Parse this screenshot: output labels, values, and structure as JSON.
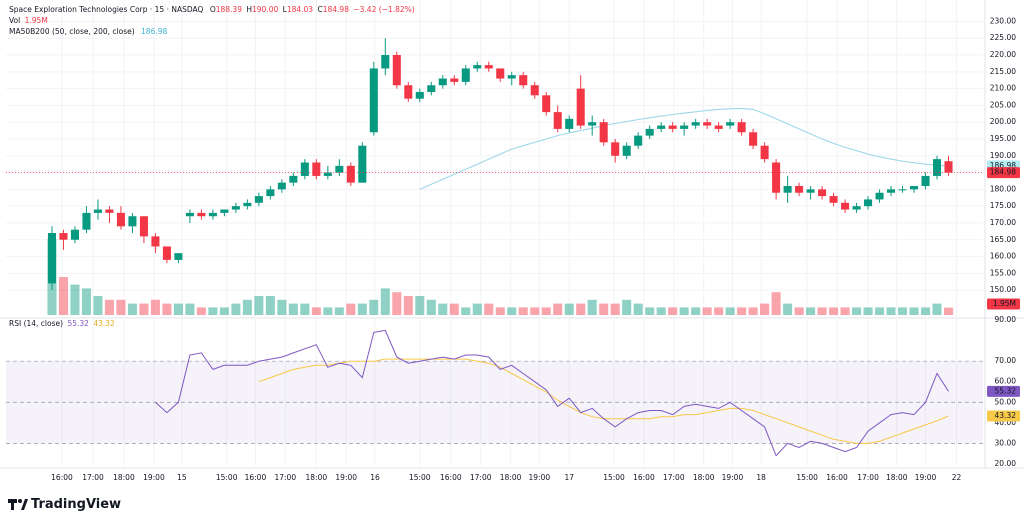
{
  "chart_data": {
    "type": "candlestick",
    "title": "Space Exploration Technologies Corp · 15 · NASDAQ",
    "legend": {
      "O": "188.39",
      "H": "190.00",
      "L": "184.03",
      "C": "184.98",
      "change": "−3.42 (−1.82%)"
    },
    "volume_title": "Vol",
    "volume_label": "1.95M",
    "ma_title": "MA50B200 (50, close, 200, close)",
    "colors": {
      "up": "#089981",
      "down": "#f23645"
    },
    "open": [
      152,
      167,
      165,
      168,
      173,
      174,
      173,
      169,
      172,
      166,
      163,
      159,
      172,
      173,
      172,
      173,
      174,
      175,
      176,
      178,
      180,
      182,
      184,
      188,
      184,
      185,
      187,
      182,
      197,
      216,
      220,
      211,
      207,
      209,
      211,
      213,
      212,
      216,
      217,
      216,
      213,
      214,
      211,
      208,
      203,
      198,
      210,
      199,
      200,
      194,
      190,
      193,
      196,
      198,
      199,
      198,
      199,
      200,
      199,
      199,
      200,
      197,
      193,
      188,
      179,
      181,
      179,
      180,
      178,
      176,
      174,
      175,
      177,
      179,
      180,
      180,
      181,
      184,
      188.39
    ],
    "high": [
      169,
      168,
      169,
      175,
      177,
      175,
      175,
      173,
      172,
      167,
      163,
      161,
      174,
      174,
      174,
      174,
      176,
      177,
      179,
      181,
      183,
      185,
      189,
      189,
      187,
      189,
      188,
      194,
      218,
      225,
      221,
      212,
      210,
      212,
      214,
      214,
      217,
      218,
      218,
      216,
      215,
      215,
      212,
      209,
      205,
      202,
      214,
      202,
      201,
      195,
      194,
      197,
      199,
      200,
      200,
      200,
      201,
      201,
      200,
      201,
      201,
      198,
      194,
      189,
      184,
      182,
      181,
      181,
      179,
      177,
      176,
      178,
      180,
      181,
      181,
      181,
      185,
      190,
      190.0
    ],
    "low": [
      150,
      162,
      164,
      167,
      171,
      170,
      168,
      167,
      164,
      161,
      158,
      158,
      170,
      171,
      171,
      172,
      173,
      174,
      175,
      177,
      179,
      181,
      183,
      183,
      183,
      184,
      181,
      182,
      196,
      214,
      210,
      206,
      206,
      208,
      210,
      211,
      211,
      215,
      215,
      212,
      211,
      210,
      207,
      202,
      197,
      197,
      198,
      196,
      193,
      188,
      189,
      192,
      195,
      197,
      197,
      196,
      198,
      198,
      197,
      198,
      196,
      192,
      188,
      177,
      176,
      178,
      177,
      177,
      175,
      173,
      173,
      174,
      176,
      178,
      179,
      179,
      180,
      183,
      184.03
    ],
    "close": [
      167,
      165,
      168,
      173,
      174,
      173,
      169,
      172,
      166,
      163,
      159,
      161,
      173,
      172,
      173,
      174,
      175,
      176,
      178,
      180,
      182,
      184,
      188,
      184,
      185,
      187,
      182,
      193,
      216,
      220,
      211,
      207,
      209,
      211,
      213,
      212,
      216,
      217,
      216,
      213,
      214,
      211,
      208,
      203,
      198,
      201,
      199,
      200,
      194,
      190,
      193,
      196,
      198,
      199,
      198,
      199,
      200,
      199,
      198,
      200,
      197,
      193,
      189,
      179,
      181,
      179,
      180,
      178,
      176,
      174,
      175,
      177,
      179,
      180,
      180,
      181,
      184,
      189,
      184.98
    ],
    "volume": [
      20,
      10,
      8,
      7,
      5,
      4,
      4,
      3,
      3,
      4,
      3,
      3,
      3,
      2,
      2,
      2,
      3,
      4,
      5,
      5,
      4,
      3,
      3,
      2,
      2,
      2,
      3,
      3,
      4,
      7,
      6,
      5,
      5,
      4,
      3,
      3,
      2,
      3,
      3,
      2,
      2,
      2,
      2,
      2,
      3,
      3,
      3,
      4,
      3,
      3,
      4,
      3,
      2,
      2,
      2,
      2,
      2,
      2,
      2,
      2,
      2,
      2,
      3,
      6,
      3,
      2,
      2,
      2,
      2,
      2,
      2,
      2,
      2,
      2,
      2,
      2,
      2,
      3,
      1.95
    ],
    "ma": {
      "color": "#9ed8e8",
      "values": [
        null,
        null,
        null,
        null,
        null,
        null,
        null,
        null,
        null,
        null,
        null,
        null,
        null,
        null,
        null,
        null,
        null,
        null,
        null,
        null,
        null,
        null,
        null,
        null,
        null,
        null,
        null,
        null,
        null,
        null,
        null,
        null,
        180,
        181.5,
        183,
        184.5,
        186,
        187.5,
        189,
        190.5,
        192,
        193,
        194,
        195,
        196,
        196.8,
        197.5,
        198.2,
        199,
        199.6,
        200.2,
        200.8,
        201.3,
        201.8,
        202.3,
        202.7,
        203.1,
        203.5,
        203.8,
        204,
        204.1,
        203.8,
        202.5,
        201,
        199.5,
        198,
        196.5,
        195,
        193.7,
        192.5,
        191.5,
        190.5,
        189.7,
        189,
        188.4,
        187.9,
        187.5,
        187.2,
        186.98
      ]
    },
    "ylim": [
      142,
      234
    ],
    "yticks": [
      {
        "value": 150,
        "label": "150.00"
      },
      {
        "value": 155,
        "label": "155.00"
      },
      {
        "value": 160,
        "label": "160.00"
      },
      {
        "value": 165,
        "label": "165.00"
      },
      {
        "value": 170,
        "label": "170.00"
      },
      {
        "value": 175,
        "label": "175.00"
      },
      {
        "value": 180,
        "label": "180.00"
      },
      {
        "value": 185,
        "label": "185.00"
      },
      {
        "value": 190,
        "label": "190.00"
      },
      {
        "value": 195,
        "label": "195.00"
      },
      {
        "value": 200,
        "label": "200.00"
      },
      {
        "value": 205,
        "label": "205.00"
      },
      {
        "value": 210,
        "label": "210.00"
      },
      {
        "value": 215,
        "label": "215.00"
      },
      {
        "value": 220,
        "label": "220.00"
      },
      {
        "value": 225,
        "label": "225.00"
      },
      {
        "value": 230,
        "label": "230.00"
      }
    ],
    "xlim": [
      -4,
      81
    ],
    "xticks": [
      {
        "value": 0.87,
        "label": "16:00"
      },
      {
        "value": 3.57,
        "label": "17:00"
      },
      {
        "value": 6.26,
        "label": "18:00"
      },
      {
        "value": 8.87,
        "label": "19:00"
      },
      {
        "value": 11.3,
        "label": "15"
      },
      {
        "value": 15.2,
        "label": "15:00"
      },
      {
        "value": 17.7,
        "label": "16:00"
      },
      {
        "value": 20.3,
        "label": "17:00"
      },
      {
        "value": 23.0,
        "label": "18:00"
      },
      {
        "value": 25.6,
        "label": "19:00"
      },
      {
        "value": 28.1,
        "label": "16"
      },
      {
        "value": 32.0,
        "label": "15:00"
      },
      {
        "value": 34.7,
        "label": "16:00"
      },
      {
        "value": 37.3,
        "label": "17:00"
      },
      {
        "value": 39.9,
        "label": "18:00"
      },
      {
        "value": 42.4,
        "label": "19:00"
      },
      {
        "value": 45.0,
        "label": "17"
      },
      {
        "value": 48.9,
        "label": "15:00"
      },
      {
        "value": 51.5,
        "label": "16:00"
      },
      {
        "value": 54.1,
        "label": "17:00"
      },
      {
        "value": 56.7,
        "label": "18:00"
      },
      {
        "value": 59.2,
        "label": "19:00"
      },
      {
        "value": 61.7,
        "label": "18"
      },
      {
        "value": 65.7,
        "label": "15:00"
      },
      {
        "value": 68.3,
        "label": "16:00"
      },
      {
        "value": 71.0,
        "label": "17:00"
      },
      {
        "value": 73.5,
        "label": "18:00"
      },
      {
        "value": 76.0,
        "label": "19:00"
      },
      {
        "value": 78.7,
        "label": "22"
      }
    ],
    "rsi": {
      "title": "RSI (14, close)",
      "color": "#7e57c2",
      "values": [
        null,
        null,
        null,
        null,
        null,
        null,
        null,
        null,
        null,
        50,
        45,
        50,
        73,
        74,
        66,
        68,
        68,
        68,
        70,
        71,
        72,
        74,
        76,
        78,
        67,
        69,
        68,
        62,
        84,
        85,
        72,
        69,
        70,
        71,
        72,
        71,
        73,
        73,
        72,
        66,
        68,
        64,
        60,
        56,
        48,
        52,
        45,
        47,
        42,
        38,
        42,
        45,
        46,
        46,
        44,
        48,
        49,
        48,
        47,
        50,
        46,
        42,
        38,
        24,
        30,
        28,
        31,
        30,
        28,
        26,
        28,
        36,
        40,
        44,
        45,
        44,
        50,
        64,
        55.32
      ],
      "ma_color": "#f7c948",
      "ma_values": [
        null,
        null,
        null,
        null,
        null,
        null,
        null,
        null,
        null,
        null,
        null,
        null,
        null,
        null,
        null,
        null,
        null,
        null,
        60,
        62,
        64,
        66,
        67,
        68,
        68,
        69,
        70,
        70,
        70,
        71,
        71,
        71,
        71,
        71,
        71,
        71,
        71,
        70,
        69,
        67,
        64,
        61,
        58,
        55,
        51,
        48,
        45,
        43,
        42,
        42,
        42,
        42,
        42,
        43,
        43,
        44,
        44,
        45,
        46,
        47,
        47,
        46,
        44,
        42,
        40,
        38,
        36,
        34,
        32,
        31,
        30,
        30,
        31,
        33,
        35,
        37,
        39,
        41,
        43.32
      ],
      "ylim": [
        19,
        91
      ],
      "yticks": [
        {
          "value": 20,
          "label": "20.00"
        },
        {
          "value": 30,
          "label": "30.00"
        },
        {
          "value": 40,
          "label": "40.00"
        },
        {
          "value": 50,
          "label": "50.00"
        },
        {
          "value": 60,
          "label": "60.00"
        },
        {
          "value": 70,
          "label": "70.00"
        },
        {
          "value": 90,
          "label": "90.00"
        }
      ],
      "bands": [
        30,
        50,
        70
      ]
    },
    "footer": "TradingView"
  }
}
